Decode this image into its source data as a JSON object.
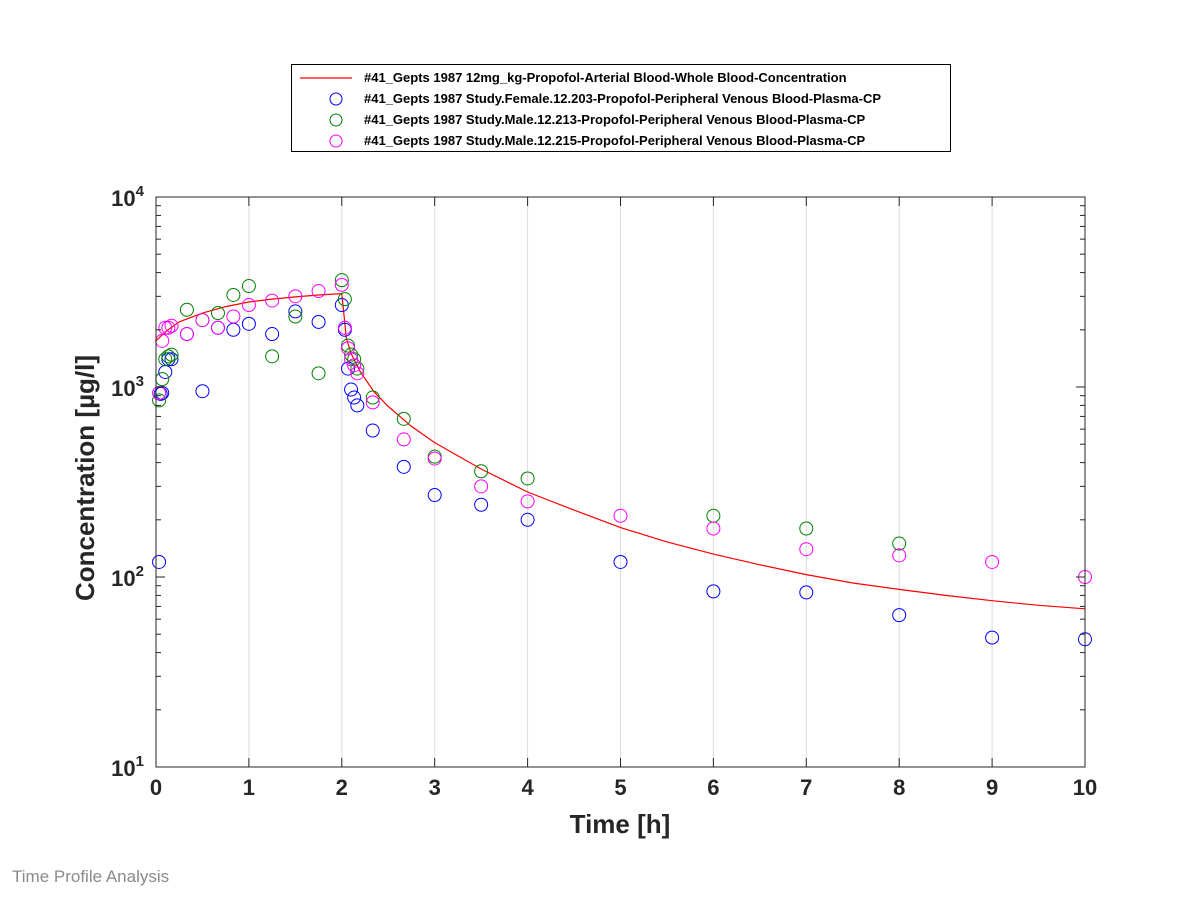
{
  "footer_text": "Time Profile Analysis",
  "colors": {
    "simulation": "#ff0000",
    "female_203": "#0000ff",
    "male_213": "#008000",
    "male_215": "#ff00ff",
    "grid": "#dcdcdc"
  },
  "chart_data": {
    "type": "scatter",
    "xlabel": "Time [h]",
    "ylabel": "Concentration [µg/l]",
    "xlim": [
      0,
      10
    ],
    "ylim": [
      10,
      10000
    ],
    "yscale": "log",
    "x_ticks": [
      0,
      1,
      2,
      3,
      4,
      5,
      6,
      7,
      8,
      9,
      10
    ],
    "y_ticks": [
      {
        "value": 10,
        "base": "10",
        "exp": "1"
      },
      {
        "value": 100,
        "base": "10",
        "exp": "2"
      },
      {
        "value": 1000,
        "base": "10",
        "exp": "3"
      },
      {
        "value": 10000,
        "base": "10",
        "exp": "4"
      }
    ],
    "grid": "vertical",
    "legend_position": "top-center",
    "series": [
      {
        "name": "#41_Gepts 1987 12mg_kg-Propofol-Arterial Blood-Whole Blood-Concentration",
        "style": "line",
        "color": "#ff0000",
        "x": [
          0,
          0.1,
          0.25,
          0.5,
          0.75,
          1,
          1.25,
          1.5,
          1.75,
          2,
          2.05,
          2.1,
          2.2,
          2.35,
          2.5,
          2.75,
          3,
          3.5,
          4,
          4.5,
          5,
          5.5,
          6,
          6.5,
          7,
          7.5,
          8,
          8.5,
          9,
          9.5,
          10
        ],
        "y": [
          1750,
          1950,
          2200,
          2450,
          2650,
          2800,
          2900,
          2980,
          3050,
          3100,
          1800,
          1500,
          1200,
          940,
          790,
          620,
          510,
          370,
          280,
          225,
          182,
          153,
          132,
          116,
          103,
          93,
          86,
          80,
          75,
          71,
          68
        ]
      },
      {
        "name": "#41_Gepts 1987 Study.Female.12.203-Propofol-Peripheral Venous Blood-Plasma-CP",
        "style": "marker",
        "color": "#0000ff",
        "x": [
          0.033,
          0.05,
          0.067,
          0.1,
          0.133,
          0.167,
          0.333,
          0.5,
          0.667,
          0.833,
          1,
          1.25,
          1.5,
          1.75,
          2,
          2.033,
          2.067,
          2.1,
          2.133,
          2.167,
          2.333,
          2.667,
          3,
          3.5,
          4,
          5,
          6,
          7,
          8,
          9,
          10
        ],
        "y": [
          120,
          920,
          930,
          1200,
          1400,
          1400,
          1900,
          950,
          2050,
          2000,
          2150,
          1900,
          2500,
          2200,
          2700,
          2000,
          1250,
          970,
          880,
          800,
          590,
          380,
          270,
          240,
          200,
          120,
          84,
          83,
          63,
          48,
          47
        ]
      },
      {
        "name": "#41_Gepts 1987 Study.Male.12.213-Propofol-Peripheral Venous Blood-Plasma-CP",
        "style": "marker",
        "color": "#008000",
        "x": [
          0.033,
          0.067,
          0.1,
          0.133,
          0.167,
          0.333,
          0.5,
          0.667,
          0.833,
          1,
          1.25,
          1.5,
          1.75,
          2,
          2.033,
          2.067,
          2.1,
          2.133,
          2.167,
          2.333,
          2.667,
          3,
          3.5,
          4,
          6,
          7,
          8
        ],
        "y": [
          850,
          1100,
          1400,
          1450,
          1480,
          2550,
          2250,
          2450,
          3050,
          3400,
          1450,
          2350,
          1180,
          3650,
          2900,
          1650,
          1480,
          1400,
          1250,
          880,
          680,
          430,
          360,
          330,
          210,
          180,
          150
        ]
      },
      {
        "name": "#41_Gepts 1987 Study.Male.12.215-Propofol-Peripheral Venous Blood-Plasma-CP",
        "style": "marker",
        "color": "#ff00ff",
        "x": [
          0.033,
          0.067,
          0.1,
          0.133,
          0.167,
          0.333,
          0.5,
          0.667,
          0.833,
          1,
          1.25,
          1.5,
          1.75,
          2,
          2.033,
          2.067,
          2.1,
          2.133,
          2.167,
          2.333,
          2.667,
          3,
          3.5,
          4,
          5,
          6,
          7,
          8,
          9,
          10
        ],
        "y": [
          930,
          1750,
          2050,
          2050,
          2100,
          1900,
          2250,
          2050,
          2350,
          2700,
          2850,
          3000,
          3200,
          3450,
          2050,
          1600,
          1400,
          1300,
          1180,
          830,
          530,
          420,
          300,
          250,
          210,
          180,
          140,
          130,
          120,
          100
        ]
      }
    ]
  }
}
